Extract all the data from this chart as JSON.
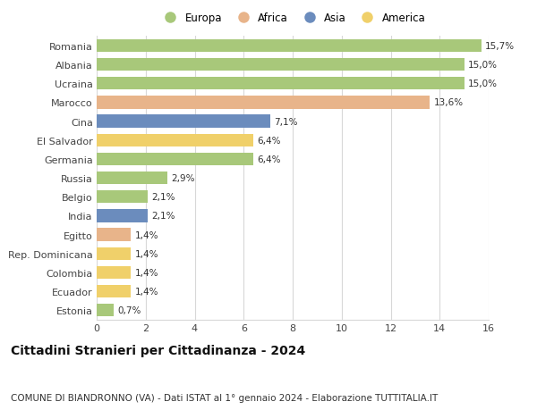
{
  "categories": [
    "Romania",
    "Albania",
    "Ucraina",
    "Marocco",
    "Cina",
    "El Salvador",
    "Germania",
    "Russia",
    "Belgio",
    "India",
    "Egitto",
    "Rep. Dominicana",
    "Colombia",
    "Ecuador",
    "Estonia"
  ],
  "values": [
    15.7,
    15.0,
    15.0,
    13.6,
    7.1,
    6.4,
    6.4,
    2.9,
    2.1,
    2.1,
    1.4,
    1.4,
    1.4,
    1.4,
    0.7
  ],
  "labels": [
    "15,7%",
    "15,0%",
    "15,0%",
    "13,6%",
    "7,1%",
    "6,4%",
    "6,4%",
    "2,9%",
    "2,1%",
    "2,1%",
    "1,4%",
    "1,4%",
    "1,4%",
    "1,4%",
    "0,7%"
  ],
  "continents": [
    "Europa",
    "Europa",
    "Europa",
    "Africa",
    "Asia",
    "America",
    "Europa",
    "Europa",
    "Europa",
    "Asia",
    "Africa",
    "America",
    "America",
    "America",
    "Europa"
  ],
  "continent_colors": {
    "Europa": "#a8c87a",
    "Africa": "#e8b48a",
    "Asia": "#6b8cbd",
    "America": "#f0d06a"
  },
  "legend_order": [
    "Europa",
    "Africa",
    "Asia",
    "America"
  ],
  "title": "Cittadini Stranieri per Cittadinanza - 2024",
  "subtitle": "COMUNE DI BIANDRONNO (VA) - Dati ISTAT al 1° gennaio 2024 - Elaborazione TUTTITALIA.IT",
  "xlim": [
    0,
    16
  ],
  "xticks": [
    0,
    2,
    4,
    6,
    8,
    10,
    12,
    14,
    16
  ],
  "background_color": "#ffffff",
  "grid_color": "#d8d8d8",
  "bar_height": 0.68,
  "title_fontsize": 10,
  "subtitle_fontsize": 7.5,
  "tick_fontsize": 8,
  "label_fontsize": 7.5,
  "legend_fontsize": 8.5
}
